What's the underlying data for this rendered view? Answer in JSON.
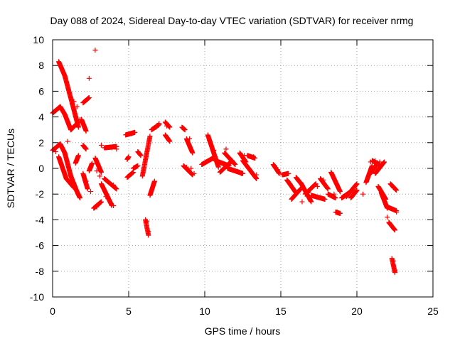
{
  "chart_data": {
    "type": "scatter",
    "title": "Day 088 of 2024, Sidereal Day-to-day VTEC variation (SDTVAR) for receiver nrmg",
    "xlabel": "GPS time / hours",
    "ylabel": "SDTVAR / TECUs",
    "xlim": [
      0,
      25
    ],
    "ylim": [
      -10,
      10
    ],
    "x_ticks": [
      0,
      5,
      10,
      15,
      20,
      25
    ],
    "y_ticks": [
      -10,
      -8,
      -6,
      -4,
      -2,
      0,
      2,
      4,
      6,
      8,
      10
    ],
    "x_tick_labels": [
      "0",
      "5",
      "10",
      "15",
      "20",
      "25"
    ],
    "y_tick_labels": [
      "-10",
      "-8",
      "-6",
      "-4",
      "-2",
      "0",
      "2",
      "4",
      "6",
      "8",
      "10"
    ],
    "grid": true,
    "marker": "+",
    "marker_color": "#ff0000",
    "series": [
      {
        "name": "SDTVAR",
        "segments": [
          {
            "x0": 0.0,
            "x1": 0.5,
            "y0": 4.3,
            "y1": 4.8
          },
          {
            "x0": 0.5,
            "x1": 0.8,
            "y0": 4.8,
            "y1": 4.2
          },
          {
            "x0": 0.8,
            "x1": 1.2,
            "y0": 4.2,
            "y1": 3.0
          },
          {
            "x0": 1.2,
            "x1": 1.7,
            "y0": 3.0,
            "y1": 3.6
          },
          {
            "x0": 0.4,
            "x1": 0.8,
            "y0": 8.3,
            "y1": 7.2
          },
          {
            "x0": 0.8,
            "x1": 1.3,
            "y0": 7.2,
            "y1": 5.0
          },
          {
            "x0": 1.3,
            "x1": 1.7,
            "y0": 5.0,
            "y1": 3.2
          },
          {
            "x0": 0.0,
            "x1": 0.5,
            "y0": 1.4,
            "y1": 1.9
          },
          {
            "x0": 0.5,
            "x1": 0.8,
            "y0": 1.9,
            "y1": 1.2
          },
          {
            "x0": 0.8,
            "x1": 1.2,
            "y0": 1.2,
            "y1": -0.6
          },
          {
            "x0": 1.2,
            "x1": 1.6,
            "y0": -0.6,
            "y1": -1.8
          },
          {
            "x0": 1.6,
            "x1": 1.8,
            "y0": -1.8,
            "y1": -2.3
          },
          {
            "x0": 0.4,
            "x1": 0.9,
            "y0": 0.9,
            "y1": -0.8
          },
          {
            "x0": 0.9,
            "x1": 1.4,
            "y0": -0.8,
            "y1": -1.5
          },
          {
            "x0": 1.5,
            "x1": 1.7,
            "y0": 0.4,
            "y1": 1.0
          },
          {
            "x0": 1.9,
            "x1": 2.2,
            "y0": 3.8,
            "y1": 2.9
          },
          {
            "x0": 2.0,
            "x1": 2.3,
            "y0": -0.4,
            "y1": -1.6
          },
          {
            "x0": 2.0,
            "x1": 2.2,
            "y0": 1.8,
            "y1": 1.5
          },
          {
            "x0": 2.0,
            "x1": 2.4,
            "y0": 5.1,
            "y1": 5.5
          },
          {
            "x0": 2.4,
            "x1": 2.6,
            "y0": -0.2,
            "y1": 0.4
          },
          {
            "x0": 2.7,
            "x1": 3.2,
            "y0": -3.1,
            "y1": -2.6
          },
          {
            "x0": 2.8,
            "x1": 3.2,
            "y0": 0.8,
            "y1": -0.3
          },
          {
            "x0": 3.2,
            "x1": 3.9,
            "y0": -1.2,
            "y1": -2.9
          },
          {
            "x0": 3.4,
            "x1": 4.2,
            "y0": 1.6,
            "y1": 1.7
          },
          {
            "x0": 3.4,
            "x1": 4.2,
            "y0": -0.8,
            "y1": -1.6
          },
          {
            "x0": 4.8,
            "x1": 5.4,
            "y0": 2.6,
            "y1": 2.8
          },
          {
            "x0": 4.9,
            "x1": 5.0,
            "y0": 0.7,
            "y1": 0.9
          },
          {
            "x0": 4.9,
            "x1": 5.3,
            "y0": -0.7,
            "y1": -0.3
          },
          {
            "x0": 5.3,
            "x1": 5.6,
            "y0": 0.0,
            "y1": 0.2
          },
          {
            "x0": 5.6,
            "x1": 5.8,
            "y0": 1.3,
            "y1": 1.0
          },
          {
            "x0": 5.9,
            "x1": 6.4,
            "y0": -0.6,
            "y1": 2.5
          },
          {
            "x0": 6.1,
            "x1": 6.3,
            "y0": -4.0,
            "y1": -5.2
          },
          {
            "x0": 6.4,
            "x1": 6.7,
            "y0": -2.1,
            "y1": -1.0
          },
          {
            "x0": 6.5,
            "x1": 7.0,
            "y0": 3.0,
            "y1": 3.4
          },
          {
            "x0": 7.4,
            "x1": 7.7,
            "y0": 3.6,
            "y1": 3.2
          },
          {
            "x0": 7.4,
            "x1": 7.7,
            "y0": 2.6,
            "y1": 2.1
          },
          {
            "x0": 8.5,
            "x1": 8.7,
            "y0": 3.2,
            "y1": 3.0
          },
          {
            "x0": 8.8,
            "x1": 9.2,
            "y0": 2.3,
            "y1": 1.2
          },
          {
            "x0": 8.6,
            "x1": 9.2,
            "y0": 0.2,
            "y1": -0.5
          },
          {
            "x0": 9.8,
            "x1": 10.7,
            "y0": 0.3,
            "y1": 0.9
          },
          {
            "x0": 10.2,
            "x1": 10.9,
            "y0": 2.6,
            "y1": 0.1
          },
          {
            "x0": 10.7,
            "x1": 11.6,
            "y0": 0.6,
            "y1": 0.2
          },
          {
            "x0": 11.0,
            "x1": 11.8,
            "y0": -0.3,
            "y1": 0.6
          },
          {
            "x0": 11.3,
            "x1": 12.0,
            "y0": 1.2,
            "y1": 0.3
          },
          {
            "x0": 11.5,
            "x1": 12.5,
            "y0": 0.0,
            "y1": -0.4
          },
          {
            "x0": 12.3,
            "x1": 12.7,
            "y0": 1.2,
            "y1": 0.5
          },
          {
            "x0": 12.5,
            "x1": 13.4,
            "y0": 0.6,
            "y1": -0.8
          },
          {
            "x0": 12.8,
            "x1": 13.3,
            "y0": 1.0,
            "y1": 0.8
          },
          {
            "x0": 14.5,
            "x1": 14.9,
            "y0": 0.3,
            "y1": -0.4
          },
          {
            "x0": 15.1,
            "x1": 15.5,
            "y0": -0.5,
            "y1": -0.4
          },
          {
            "x0": 15.4,
            "x1": 16.0,
            "y0": -0.9,
            "y1": -1.9
          },
          {
            "x0": 15.7,
            "x1": 16.3,
            "y0": -2.4,
            "y1": -1.6
          },
          {
            "x0": 16.0,
            "x1": 16.4,
            "y0": -0.7,
            "y1": -1.3
          },
          {
            "x0": 16.3,
            "x1": 17.0,
            "y0": -1.1,
            "y1": -2.6
          },
          {
            "x0": 16.6,
            "x1": 17.3,
            "y0": -2.0,
            "y1": -1.2
          },
          {
            "x0": 17.0,
            "x1": 17.9,
            "y0": -2.1,
            "y1": -2.4
          },
          {
            "x0": 17.6,
            "x1": 18.1,
            "y0": -0.8,
            "y1": -1.6
          },
          {
            "x0": 18.1,
            "x1": 18.6,
            "y0": -2.0,
            "y1": -2.3
          },
          {
            "x0": 18.3,
            "x1": 18.9,
            "y0": -0.3,
            "y1": -1.8
          },
          {
            "x0": 18.6,
            "x1": 18.9,
            "y0": -3.4,
            "y1": -3.5
          },
          {
            "x0": 19.0,
            "x1": 19.6,
            "y0": -2.3,
            "y1": -1.8
          },
          {
            "x0": 19.3,
            "x1": 20.0,
            "y0": -2.2,
            "y1": -1.2
          },
          {
            "x0": 19.6,
            "x1": 20.0,
            "y0": -2.3,
            "y1": -1.7
          },
          {
            "x0": 20.6,
            "x1": 21.0,
            "y0": -1.1,
            "y1": 0.2
          },
          {
            "x0": 20.8,
            "x1": 21.3,
            "y0": -0.5,
            "y1": 0.3
          },
          {
            "x0": 21.0,
            "x1": 21.5,
            "y0": 0.6,
            "y1": 0.3
          },
          {
            "x0": 21.2,
            "x1": 21.8,
            "y0": -0.4,
            "y1": 0.5
          },
          {
            "x0": 21.4,
            "x1": 21.9,
            "y0": -1.4,
            "y1": -2.4
          },
          {
            "x0": 21.6,
            "x1": 22.0,
            "y0": -1.9,
            "y1": -3.1
          },
          {
            "x0": 22.0,
            "x1": 22.6,
            "y0": -3.0,
            "y1": -3.3
          },
          {
            "x0": 22.1,
            "x1": 22.5,
            "y0": -4.2,
            "y1": -4.8
          },
          {
            "x0": 22.2,
            "x1": 22.6,
            "y0": -1.2,
            "y1": -1.7
          },
          {
            "x0": 22.3,
            "x1": 22.5,
            "y0": -7.0,
            "y1": -8.1
          }
        ],
        "points": [
          [
            2.8,
            9.2
          ],
          [
            2.4,
            7.0
          ],
          [
            1.4,
            5.2
          ],
          [
            1.6,
            4.8
          ],
          [
            2.3,
            5.4
          ],
          [
            1.8,
            3.8
          ],
          [
            0.2,
            1.3
          ],
          [
            1.0,
            2.1
          ],
          [
            2.9,
            -0.2
          ],
          [
            3.1,
            -0.6
          ],
          [
            3.5,
            -2.2
          ],
          [
            4.0,
            -1.3
          ],
          [
            2.5,
            -1.8
          ],
          [
            2.2,
            -1.0
          ],
          [
            1.2,
            -1.0
          ],
          [
            5.4,
            2.8
          ],
          [
            5.2,
            2.7
          ],
          [
            6.8,
            3.2
          ],
          [
            7.0,
            3.5
          ],
          [
            7.5,
            3.3
          ],
          [
            8.6,
            3.1
          ],
          [
            9.0,
            2.3
          ],
          [
            8.8,
            0.1
          ],
          [
            9.1,
            0.0
          ],
          [
            9.3,
            -0.4
          ],
          [
            10.3,
            2.2
          ],
          [
            10.6,
            1.4
          ],
          [
            11.4,
            1.5
          ],
          [
            12.6,
            1.0
          ],
          [
            13.2,
            0.9
          ],
          [
            13.4,
            -0.5
          ],
          [
            12.4,
            -0.4
          ],
          [
            14.6,
            0.2
          ],
          [
            14.8,
            -0.1
          ],
          [
            15.6,
            -1.2
          ],
          [
            16.4,
            -2.6
          ],
          [
            16.8,
            -1.9
          ],
          [
            17.4,
            -1.4
          ],
          [
            17.8,
            -0.9
          ],
          [
            18.4,
            -0.5
          ],
          [
            18.7,
            -3.4
          ],
          [
            18.5,
            -2.0
          ],
          [
            19.8,
            -1.5
          ],
          [
            20.4,
            -2.0
          ],
          [
            20.9,
            0.5
          ],
          [
            21.2,
            0.6
          ],
          [
            21.5,
            0.5
          ],
          [
            21.9,
            -2.8
          ],
          [
            22.0,
            -3.8
          ],
          [
            22.4,
            -7.2
          ],
          [
            22.5,
            -7.9
          ],
          [
            22.6,
            -3.4
          ],
          [
            22.4,
            -1.5
          ],
          [
            6.2,
            -4.1
          ],
          [
            6.3,
            -4.9
          ],
          [
            3.2,
            1.8
          ],
          [
            3.9,
            1.6
          ],
          [
            4.2,
            1.5
          ],
          [
            4.0,
            -2.9
          ],
          [
            2.9,
            -3.0
          ]
        ]
      }
    ]
  }
}
